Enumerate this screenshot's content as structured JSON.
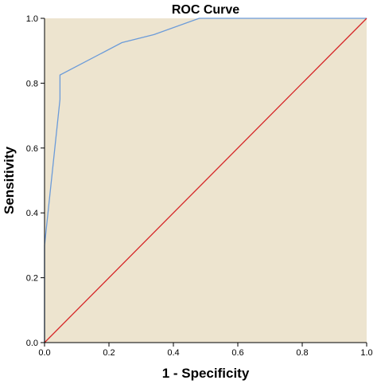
{
  "chart_data": {
    "type": "line",
    "title": "ROC Curve",
    "xlabel": "1 - Specificity",
    "ylabel": "Sensitivity",
    "xlim": [
      0,
      1
    ],
    "ylim": [
      0,
      1
    ],
    "xticks": [
      "0.0",
      "0.2",
      "0.4",
      "0.6",
      "0.8",
      "1.0"
    ],
    "yticks": [
      "0.0",
      "0.2",
      "0.4",
      "0.6",
      "0.8",
      "1.0"
    ],
    "grid": false,
    "legend": "none",
    "background_color": "#ede4cf",
    "series": [
      {
        "color": "#6b9bd9",
        "x": [
          0,
          0,
          0.048,
          0.048,
          0.24,
          0.34,
          0.48,
          1.0
        ],
        "y": [
          0,
          0.3,
          0.75,
          0.825,
          0.925,
          0.95,
          1.0,
          1.0
        ]
      },
      {
        "color": "#d62728",
        "x": [
          0,
          1
        ],
        "y": [
          0,
          1
        ]
      }
    ]
  }
}
